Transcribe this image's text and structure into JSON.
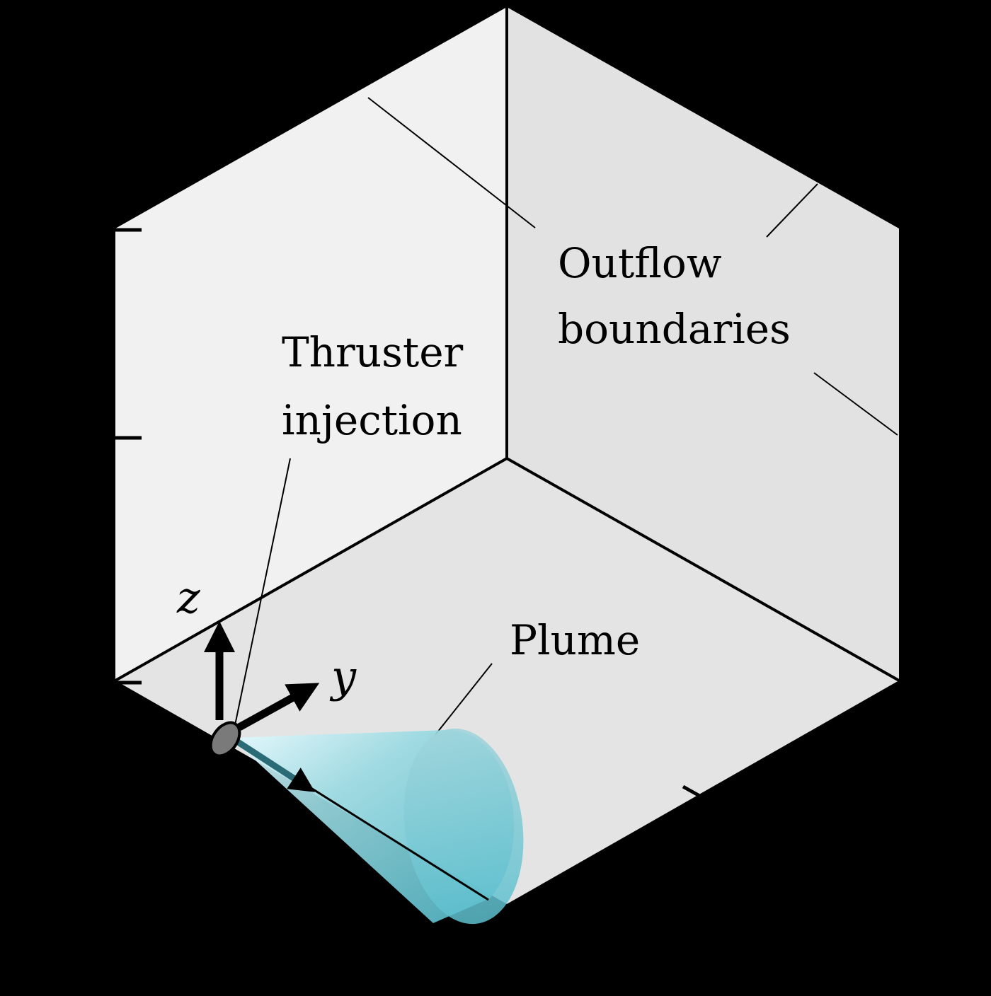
{
  "diagram": {
    "labels": {
      "outflow_line1": "Outflow",
      "outflow_line2": "boundaries",
      "thruster_line1": "Thruster",
      "thruster_line2": "injection",
      "plume": "Plume"
    },
    "axes": {
      "z": "z",
      "y": "y"
    }
  },
  "colors": {
    "background": "#000000",
    "left_face": "#f1f1f1",
    "right_face": "#e2e2e2",
    "bottom_face": "#e4e4e4",
    "edge": "#000000",
    "plume": "#74c7d2",
    "plume_highlight": "#e6fbff",
    "thruster": "#7a7a7a"
  }
}
